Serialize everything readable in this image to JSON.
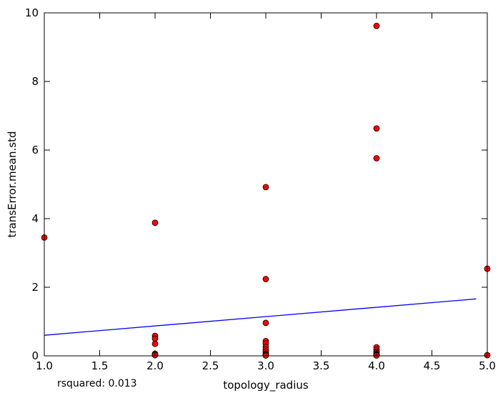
{
  "chart_data": {
    "type": "scatter",
    "title": "",
    "xlabel": "topology_radius",
    "ylabel": "transError.mean.std",
    "xlim": [
      1.0,
      5.0
    ],
    "ylim": [
      0,
      10
    ],
    "grid": false,
    "x_ticks": [
      1.0,
      1.5,
      2.0,
      2.5,
      3.0,
      3.5,
      4.0,
      4.5,
      5.0
    ],
    "x_tick_labels": [
      "1.0",
      "1.5",
      "2.0",
      "2.5",
      "3.0",
      "3.5",
      "4.0",
      "4.5",
      "5.0"
    ],
    "y_ticks": [
      0,
      2,
      4,
      6,
      8,
      10
    ],
    "y_tick_labels": [
      "0",
      "2",
      "4",
      "6",
      "8",
      "10"
    ],
    "series": [
      {
        "name": "points",
        "kind": "scatter",
        "color": "#ff0000",
        "edge_color": "#000000",
        "x": [
          1,
          2,
          2,
          2,
          2,
          2,
          2,
          2,
          3,
          3,
          3,
          3,
          3,
          3,
          3,
          3,
          3,
          3,
          3,
          4,
          4,
          4,
          4,
          4,
          4,
          4,
          4,
          4,
          4,
          5,
          5
        ],
        "y": [
          3.45,
          3.88,
          0.58,
          0.5,
          0.35,
          0.06,
          0.03,
          0.02,
          4.92,
          2.24,
          0.96,
          0.43,
          0.36,
          0.26,
          0.18,
          0.12,
          0.06,
          0.03,
          0.01,
          9.62,
          6.63,
          5.76,
          0.25,
          0.18,
          0.12,
          0.08,
          0.04,
          0.02,
          0.01,
          2.54,
          0.02
        ]
      },
      {
        "name": "fit",
        "kind": "line",
        "color": "#0000ff",
        "x": [
          1.0,
          4.9
        ],
        "y": [
          0.6,
          1.66
        ]
      }
    ],
    "annotations": [
      {
        "text": "rsquared: 0.013",
        "position": "below-left"
      }
    ]
  }
}
